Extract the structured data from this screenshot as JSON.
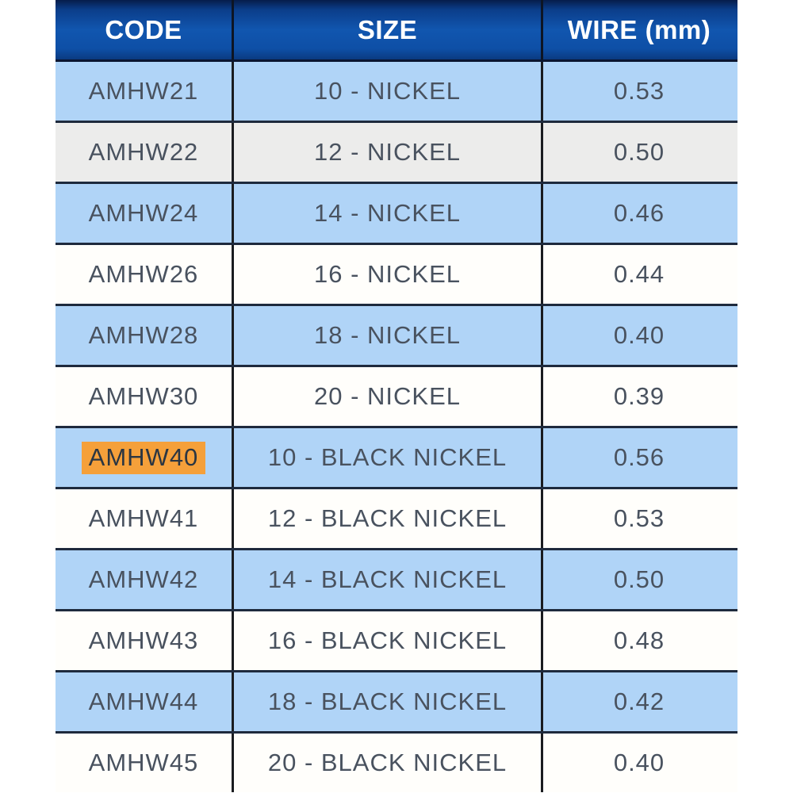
{
  "chart_data": {
    "type": "table",
    "title": "",
    "columns": [
      "CODE",
      "SIZE",
      "WIRE (mm)"
    ],
    "rows": [
      {
        "code": "AMHW21",
        "size": "10 - NICKEL",
        "wire": "0.53",
        "variant": "blue",
        "highlighted": false
      },
      {
        "code": "AMHW22",
        "size": "12 - NICKEL",
        "wire": "0.50",
        "variant": "gray",
        "highlighted": false
      },
      {
        "code": "AMHW24",
        "size": "14 - NICKEL",
        "wire": "0.46",
        "variant": "blue",
        "highlighted": false
      },
      {
        "code": "AMHW26",
        "size": "16 - NICKEL",
        "wire": "0.44",
        "variant": "white",
        "highlighted": false
      },
      {
        "code": "AMHW28",
        "size": "18 - NICKEL",
        "wire": "0.40",
        "variant": "blue",
        "highlighted": false
      },
      {
        "code": "AMHW30",
        "size": "20 - NICKEL",
        "wire": "0.39",
        "variant": "white",
        "highlighted": false
      },
      {
        "code": "AMHW40",
        "size": "10 - BLACK NICKEL",
        "wire": "0.56",
        "variant": "blue",
        "highlighted": true
      },
      {
        "code": "AMHW41",
        "size": "12 - BLACK NICKEL",
        "wire": "0.53",
        "variant": "white",
        "highlighted": false
      },
      {
        "code": "AMHW42",
        "size": "14 - BLACK NICKEL",
        "wire": "0.50",
        "variant": "blue",
        "highlighted": false
      },
      {
        "code": "AMHW43",
        "size": "16 - BLACK NICKEL",
        "wire": "0.48",
        "variant": "white",
        "highlighted": false
      },
      {
        "code": "AMHW44",
        "size": "18 - BLACK NICKEL",
        "wire": "0.42",
        "variant": "blue",
        "highlighted": false
      },
      {
        "code": "AMHW45",
        "size": "20 - BLACK NICKEL",
        "wire": "0.40",
        "variant": "white",
        "highlighted": false
      }
    ]
  },
  "header": {
    "col_code": "CODE",
    "col_size": "SIZE",
    "col_wire": "WIRE (mm)"
  },
  "colors": {
    "header_blue_top": "#061d4a",
    "header_blue_mid": "#1156af",
    "header_blue_bottom": "#0a3a80",
    "row_blue": "#b0d4f7",
    "row_gray": "#ececeb",
    "row_white": "#fffefb",
    "highlight_orange": "#f5a03a",
    "row_text": "#49525f",
    "header_text": "#ffffff",
    "grid_line": "#1e2a3d"
  }
}
